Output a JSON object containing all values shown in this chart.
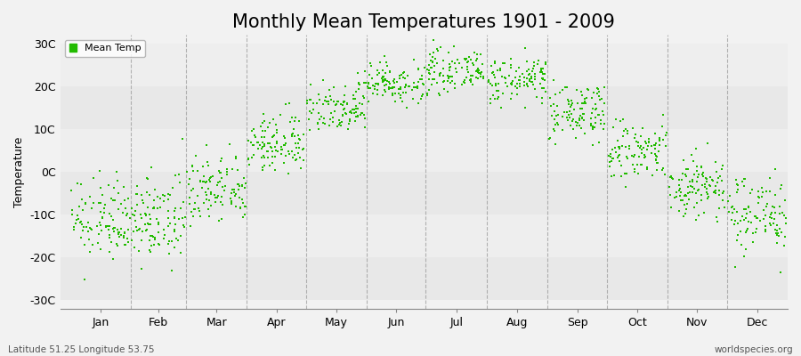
{
  "title": "Monthly Mean Temperatures 1901 - 2009",
  "ylabel": "Temperature",
  "footer_left": "Latitude 51.25 Longitude 53.75",
  "footer_right": "worldspecies.org",
  "legend_label": "Mean Temp",
  "yticks": [
    -30,
    -20,
    -10,
    0,
    10,
    20,
    30
  ],
  "ytick_labels": [
    "-30C",
    "-20C",
    "-10C",
    "0C",
    "10C",
    "20C",
    "30C"
  ],
  "ylim": [
    -32,
    32
  ],
  "months": [
    "Jan",
    "Feb",
    "Mar",
    "Apr",
    "May",
    "Jun",
    "Jul",
    "Aug",
    "Sep",
    "Oct",
    "Nov",
    "Dec"
  ],
  "month_starts": [
    0,
    31,
    59,
    90,
    120,
    151,
    181,
    212,
    243,
    273,
    304,
    334
  ],
  "month_days": [
    31,
    28,
    31,
    30,
    31,
    30,
    31,
    31,
    30,
    31,
    30,
    31
  ],
  "month_means": [
    -11.5,
    -11.5,
    -4.5,
    6.5,
    15.5,
    21.0,
    23.5,
    21.5,
    14.0,
    4.5,
    -3.5,
    -9.5
  ],
  "month_stds": [
    4.5,
    4.8,
    4.2,
    3.5,
    3.2,
    2.5,
    2.2,
    2.5,
    3.2,
    3.8,
    4.0,
    4.5
  ],
  "n_years": 109,
  "dot_color": "#22BB00",
  "dot_size": 3,
  "bg_color": "#F2F2F2",
  "band_colors": [
    "#E8E8E8",
    "#EEEEEE"
  ],
  "grid_color": "#888888",
  "title_fontsize": 15,
  "axis_fontsize": 9,
  "tick_fontsize": 9
}
